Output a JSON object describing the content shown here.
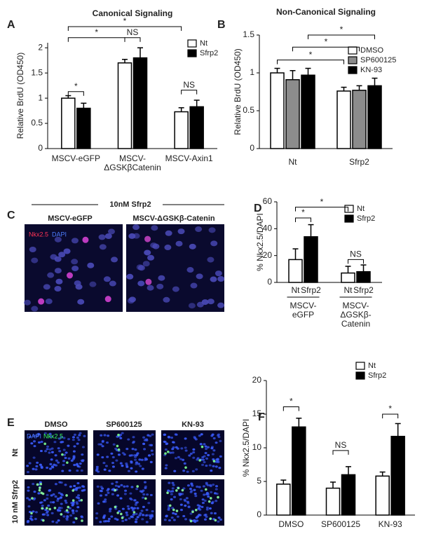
{
  "panels": [
    "A",
    "B",
    "C",
    "D",
    "E",
    "F"
  ],
  "chart_data": [
    {
      "type": "bar",
      "title": "Canonical Signaling",
      "y_label": "Relative BrdU (OD450)",
      "categories": [
        "MSCV-eGFP",
        "MSCV-\nΔGSKβCatenin",
        "MSCV-Axin1"
      ],
      "series": [
        {
          "name": "Nt",
          "color": "#ffffff",
          "values": [
            1.0,
            1.7,
            0.73
          ],
          "errors": [
            0.05,
            0.07,
            0.08
          ]
        },
        {
          "name": "Sfrp2",
          "color": "#000000",
          "values": [
            0.8,
            1.8,
            0.83
          ],
          "errors": [
            0.1,
            0.2,
            0.13
          ]
        }
      ],
      "ylim": [
        0,
        2.1
      ],
      "yticks": [
        0,
        0.5,
        1,
        1.5,
        2
      ],
      "legend": "upper right",
      "annotations": [
        "*",
        "*",
        "NS",
        "*",
        "NS"
      ]
    },
    {
      "type": "bar",
      "title": "Non-Canonical Signaling",
      "y_label": "Relative BrdU (OD450)",
      "categories": [
        "Nt",
        "Sfrp2"
      ],
      "series": [
        {
          "name": "DMSO",
          "color": "#ffffff",
          "values": [
            1.0,
            0.76
          ],
          "errors": [
            0.06,
            0.05
          ]
        },
        {
          "name": "SP600125",
          "color": "#8c8c8c",
          "values": [
            0.91,
            0.77
          ],
          "errors": [
            0.12,
            0.06
          ]
        },
        {
          "name": "KN-93",
          "color": "#000000",
          "values": [
            0.97,
            0.83
          ],
          "errors": [
            0.09,
            0.1
          ]
        }
      ],
      "ylim": [
        0,
        1.5
      ],
      "yticks": [
        0,
        0.5,
        1,
        1.5
      ],
      "legend": "upper right",
      "annotations": [
        "*",
        "*",
        "*"
      ]
    },
    {
      "type": "bar",
      "y_label": "% Nkx2.5/DAPI",
      "categories": [
        "MSCV-\neGFP",
        "MSCV-\nΔGSKβ-\nCatenin"
      ],
      "series": [
        {
          "name": "Nt",
          "color": "#ffffff",
          "values": [
            17,
            7
          ],
          "errors": [
            8,
            5
          ]
        },
        {
          "name": "Sfrp2",
          "color": "#000000",
          "values": [
            34,
            8
          ],
          "errors": [
            9,
            5
          ]
        }
      ],
      "ylim": [
        0,
        60
      ],
      "yticks": [
        0,
        20,
        40,
        60
      ],
      "legend": "upper right",
      "annotations": [
        "*",
        "*",
        "NS"
      ]
    },
    {
      "type": "bar",
      "y_label": "% Nkx2.5/DAPI",
      "categories": [
        "DMSO",
        "SP600125",
        "KN-93"
      ],
      "series": [
        {
          "name": "Nt",
          "color": "#ffffff",
          "values": [
            4.6,
            4.0,
            5.8
          ],
          "errors": [
            0.6,
            0.9,
            0.6
          ]
        },
        {
          "name": "Sfrp2",
          "color": "#000000",
          "values": [
            13.1,
            6.0,
            11.7
          ],
          "errors": [
            1.3,
            1.2,
            1.9
          ]
        }
      ],
      "ylim": [
        0,
        20
      ],
      "yticks": [
        0,
        5,
        10,
        15,
        20
      ],
      "legend": "upper right",
      "annotations": [
        "*",
        "NS",
        "*"
      ]
    }
  ],
  "images": {
    "C": {
      "header": "10nM Sfrp2",
      "columns": [
        "MSCV-eGFP",
        "MSCV-ΔGSKβ-Catenin"
      ],
      "stains": [
        "Nkx2.5",
        "DAPI"
      ]
    },
    "E": {
      "columns": [
        "DMSO",
        "SP600125",
        "KN-93"
      ],
      "rows": [
        "Nt",
        "10 nM Sfrp2"
      ],
      "stains": [
        "DAPI",
        "Nkx2.5"
      ]
    }
  }
}
